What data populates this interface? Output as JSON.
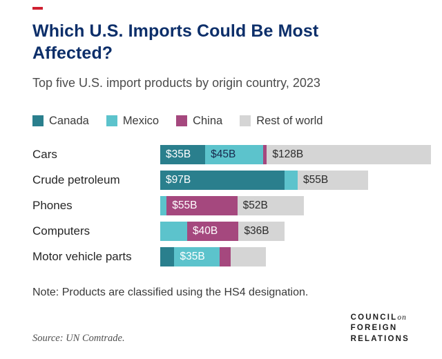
{
  "accent_color": "#cf2031",
  "title_color": "#0d2f6a",
  "header": {
    "title": "Which U.S. Imports Could Be Most Affected?",
    "subtitle": "Top five U.S. import products by origin country, 2023"
  },
  "legend": [
    {
      "label": "Canada",
      "color": "#2a7f8d"
    },
    {
      "label": "Mexico",
      "color": "#5cc3cc"
    },
    {
      "label": "China",
      "color": "#a5487e"
    },
    {
      "label": "Rest of world",
      "color": "#d5d5d5"
    }
  ],
  "chart_data": {
    "type": "bar",
    "orientation": "horizontal",
    "stacked": true,
    "unit": "billions of U.S. dollars",
    "title": "Which U.S. Imports Could Be Most Affected?",
    "subtitle": "Top five U.S. import products by origin country, 2023",
    "legend_position": "top",
    "grid": false,
    "categories": [
      "Cars",
      "Crude petroleum",
      "Phones",
      "Computers",
      "Motor vehicle parts"
    ],
    "series_colors": {
      "Canada": "#2a7f8d",
      "Mexico": "#5cc3cc",
      "China": "#a5487e",
      "Rest of world": "#d5d5d5"
    },
    "rows": [
      {
        "category": "Cars",
        "segments": [
          {
            "country": "Canada",
            "value": 35,
            "label": "$35B",
            "label_color": "#ffffff"
          },
          {
            "country": "Mexico",
            "value": 45,
            "label": "$45B",
            "label_color": "#17294d"
          },
          {
            "country": "China",
            "value": 3,
            "label": "",
            "label_color": ""
          },
          {
            "country": "Rest of world",
            "value": 128,
            "label": "$128B",
            "label_color": "#2b2b2b"
          }
        ]
      },
      {
        "category": "Crude petroleum",
        "segments": [
          {
            "country": "Canada",
            "value": 97,
            "label": "$97B",
            "label_color": "#ffffff"
          },
          {
            "country": "Mexico",
            "value": 10,
            "label": "",
            "label_color": ""
          },
          {
            "country": "Rest of world",
            "value": 55,
            "label": "$55B",
            "label_color": "#2b2b2b"
          }
        ]
      },
      {
        "category": "Phones",
        "segments": [
          {
            "country": "Mexico",
            "value": 5,
            "label": "",
            "label_color": ""
          },
          {
            "country": "China",
            "value": 55,
            "label": "$55B",
            "label_color": "#ffffff"
          },
          {
            "country": "Rest of world",
            "value": 52,
            "label": "$52B",
            "label_color": "#2b2b2b"
          }
        ]
      },
      {
        "category": "Computers",
        "segments": [
          {
            "country": "Mexico",
            "value": 21,
            "label": "",
            "label_color": ""
          },
          {
            "country": "China",
            "value": 40,
            "label": "$40B",
            "label_color": "#ffffff"
          },
          {
            "country": "Rest of world",
            "value": 36,
            "label": "$36B",
            "label_color": "#2b2b2b"
          }
        ]
      },
      {
        "category": "Motor vehicle parts",
        "segments": [
          {
            "country": "Canada",
            "value": 11,
            "label": "",
            "label_color": ""
          },
          {
            "country": "Mexico",
            "value": 35,
            "label": "$35B",
            "label_color": "#ffffff"
          },
          {
            "country": "China",
            "value": 9,
            "label": "",
            "label_color": ""
          },
          {
            "country": "Rest of world",
            "value": 27,
            "label": "",
            "label_color": ""
          }
        ]
      }
    ]
  },
  "footer": {
    "note": "Note: Products are classified using the HS4 designation.",
    "source_label": "Source:",
    "source_text": "UN Comtrade.",
    "logo": {
      "line1_main": "COUNCIL",
      "line1_accent": "on",
      "line2": "FOREIGN",
      "line3": "RELATIONS"
    }
  }
}
